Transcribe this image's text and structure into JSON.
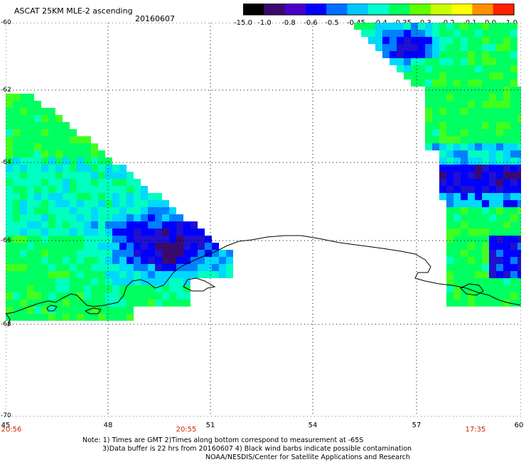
{
  "header": {
    "title": "ASCAT 25KM MLE-2 ascending",
    "date": "20160607"
  },
  "colorbar": {
    "labels": [
      "-15.0",
      "-1.0",
      "-0.8",
      "-0.6",
      "-0.5",
      "-0.45",
      "-0.4",
      "-0.35",
      "-0.3",
      "-0.2",
      "-0.1",
      "0.0",
      "1.0"
    ],
    "colors": [
      "#000000",
      "#3a0a6e",
      "#4a00c8",
      "#0000ff",
      "#0070ff",
      "#00c8ff",
      "#00ffd0",
      "#00ff60",
      "#60ff00",
      "#c8ff00",
      "#ffff00",
      "#ff9000",
      "#ff2000"
    ]
  },
  "axes": {
    "y_labels": [
      "-60",
      "-62",
      "-64",
      "-66",
      "-68",
      "-70"
    ],
    "x_labels": [
      "45",
      "48",
      "51",
      "54",
      "57",
      "60"
    ],
    "time_labels": [
      "20:56",
      "20:55",
      "17:35"
    ]
  },
  "notes": {
    "line1": "Note: 1) Times are GMT 2)Times along bottom correspond to measurement at -65S",
    "line2": "3)Data buffer is 22 hrs from 20160607 4) Black wind barbs indicate possible contamination",
    "line3": "NOAA/NESDIS/Center for Satellite Applications and Research"
  }
}
